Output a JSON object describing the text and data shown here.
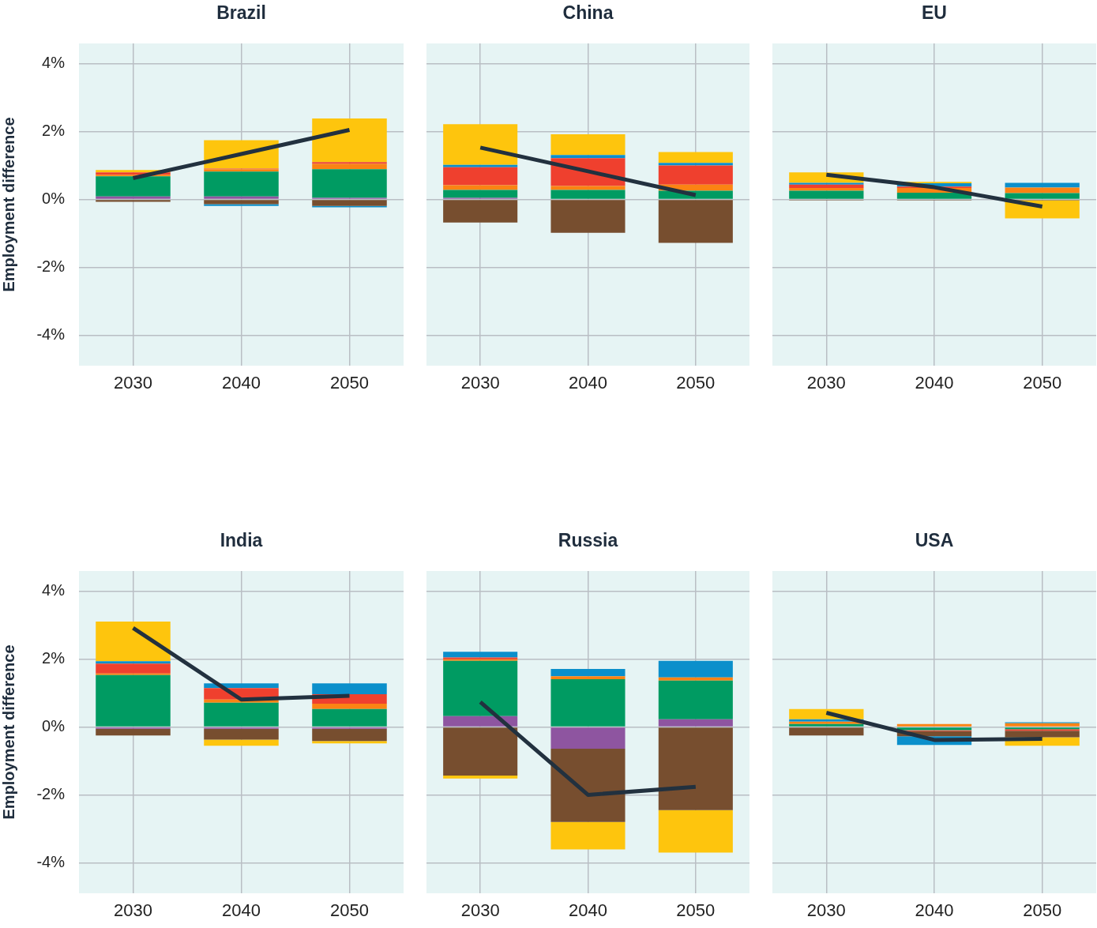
{
  "chart_data": [
    {
      "type": "bar",
      "stacked": true,
      "title": "Brazil",
      "ylabel": "Employment difference",
      "categories": [
        "2030",
        "2040",
        "2050"
      ],
      "ylim": [
        -4.9,
        4.6
      ],
      "yticks": [
        {
          "value": 4,
          "label": "4%"
        },
        {
          "value": 2,
          "label": "2%"
        },
        {
          "value": 0,
          "label": "0%"
        },
        {
          "value": -2,
          "label": "-2%"
        },
        {
          "value": -4,
          "label": "-4%"
        }
      ],
      "grid": true,
      "legend": false,
      "series": [
        {
          "color": "#8e55a0",
          "values": [
            0.09,
            0.09,
            0.05
          ]
        },
        {
          "color": "#009b62",
          "values": [
            0.59,
            0.73,
            0.84
          ]
        },
        {
          "color": "#fb8313",
          "values": [
            0.05,
            0.07,
            0.16
          ]
        },
        {
          "color": "#ef402e",
          "values": [
            0.07,
            0.02,
            0.05
          ]
        },
        {
          "color": "#774e2f",
          "values": [
            -0.07,
            -0.14,
            -0.19
          ]
        },
        {
          "color": "#0b8fcb",
          "values": [
            null,
            -0.05,
            -0.04
          ]
        },
        {
          "color": "#fec50d",
          "values": [
            0.07,
            0.84,
            1.29
          ]
        },
        {
          "type": "line",
          "color": "#22313f",
          "values": [
            0.63,
            1.34,
            2.05
          ]
        }
      ]
    },
    {
      "type": "bar",
      "stacked": true,
      "title": "China",
      "categories": [
        "2030",
        "2040",
        "2050"
      ],
      "ylim": [
        -4.9,
        4.6
      ],
      "yticks": [
        {
          "value": 4,
          "label": null
        },
        {
          "value": 2,
          "label": null
        },
        {
          "value": 0,
          "label": null
        },
        {
          "value": -2,
          "label": null
        },
        {
          "value": -4,
          "label": null
        }
      ],
      "grid": true,
      "legend": false,
      "tick_labels": "x",
      "series": [
        {
          "color": "#8e55a0",
          "values": [
            0.05,
            null,
            null
          ]
        },
        {
          "color": "#009b62",
          "values": [
            0.23,
            0.28,
            0.26
          ]
        },
        {
          "color": "#fb8313",
          "values": [
            0.14,
            0.12,
            0.18
          ]
        },
        {
          "color": "#ef402e",
          "values": [
            0.53,
            0.82,
            0.56
          ]
        },
        {
          "color": "#774e2f",
          "values": [
            -0.68,
            -0.98,
            -1.28
          ]
        },
        {
          "color": "#0b8fcb",
          "values": [
            0.07,
            0.09,
            0.08
          ]
        },
        {
          "color": "#fec50d",
          "values": [
            1.2,
            0.61,
            0.32
          ]
        },
        {
          "type": "line",
          "color": "#22313f",
          "values": [
            1.53,
            0.83,
            0.13
          ]
        }
      ]
    },
    {
      "type": "bar",
      "stacked": true,
      "title": "EU",
      "categories": [
        "2030",
        "2040",
        "2050"
      ],
      "ylim": [
        -4.9,
        4.6
      ],
      "yticks": [
        {
          "value": 4,
          "label": null
        },
        {
          "value": 2,
          "label": null
        },
        {
          "value": 0,
          "label": null
        },
        {
          "value": -2,
          "label": null
        },
        {
          "value": -4,
          "label": null
        }
      ],
      "grid": true,
      "legend": false,
      "tick_labels": "x",
      "series": [
        {
          "color": "#8e55a0",
          "values": [
            null,
            null,
            null
          ]
        },
        {
          "color": "#009b62",
          "values": [
            0.26,
            0.2,
            0.19
          ]
        },
        {
          "color": "#fb8313",
          "values": [
            0.08,
            0.14,
            0.16
          ]
        },
        {
          "color": "#ef402e",
          "values": [
            0.1,
            0.04,
            null
          ]
        },
        {
          "color": "#774e2f",
          "values": [
            -0.03,
            -0.03,
            -0.03
          ]
        },
        {
          "color": "#0b8fcb",
          "values": [
            0.05,
            0.1,
            0.14
          ]
        },
        {
          "color": "#fec50d",
          "values": [
            0.31,
            0.04,
            -0.53
          ]
        },
        {
          "type": "line",
          "color": "#22313f",
          "values": [
            0.73,
            0.36,
            -0.21
          ]
        }
      ]
    },
    {
      "type": "bar",
      "stacked": true,
      "title": "India",
      "ylabel": "Employment difference",
      "categories": [
        "2030",
        "2040",
        "2050"
      ],
      "ylim": [
        -4.9,
        4.6
      ],
      "yticks": [
        {
          "value": 4,
          "label": "4%"
        },
        {
          "value": 2,
          "label": "2%"
        },
        {
          "value": 0,
          "label": "0%"
        },
        {
          "value": -2,
          "label": "-2%"
        },
        {
          "value": -4,
          "label": "-4%"
        }
      ],
      "grid": true,
      "legend": false,
      "series": [
        {
          "color": "#8e55a0",
          "values": [
            -0.05,
            -0.05,
            -0.05
          ]
        },
        {
          "color": "#009b62",
          "values": [
            1.53,
            0.72,
            0.53
          ]
        },
        {
          "color": "#fb8313",
          "values": [
            0.05,
            0.09,
            0.16
          ]
        },
        {
          "color": "#ef402e",
          "values": [
            0.29,
            0.34,
            0.28
          ]
        },
        {
          "color": "#774e2f",
          "values": [
            -0.2,
            -0.32,
            -0.36
          ]
        },
        {
          "color": "#0b8fcb",
          "values": [
            0.07,
            0.14,
            0.32
          ]
        },
        {
          "color": "#fec50d",
          "values": [
            1.17,
            -0.18,
            -0.07
          ]
        },
        {
          "type": "line",
          "color": "#22313f",
          "values": [
            2.92,
            0.81,
            0.92
          ]
        }
      ]
    },
    {
      "type": "bar",
      "stacked": true,
      "title": "Russia",
      "categories": [
        "2030",
        "2040",
        "2050"
      ],
      "ylim": [
        -4.9,
        4.6
      ],
      "yticks": [
        {
          "value": 4,
          "label": null
        },
        {
          "value": 2,
          "label": null
        },
        {
          "value": 0,
          "label": null
        },
        {
          "value": -2,
          "label": null
        },
        {
          "value": -4,
          "label": null
        }
      ],
      "grid": true,
      "legend": false,
      "tick_labels": "x",
      "series": [
        {
          "color": "#8e55a0",
          "values": [
            0.32,
            -0.64,
            0.23
          ]
        },
        {
          "color": "#009b62",
          "values": [
            1.63,
            1.41,
            1.14
          ]
        },
        {
          "color": "#fb8313",
          "values": [
            0.05,
            0.09,
            0.09
          ]
        },
        {
          "color": "#ef402e",
          "values": [
            0.05,
            null,
            null
          ]
        },
        {
          "color": "#774e2f",
          "values": [
            -1.43,
            -2.16,
            -2.45
          ]
        },
        {
          "color": "#0b8fcb",
          "values": [
            0.17,
            0.21,
            0.49
          ]
        },
        {
          "color": "#fec50d",
          "values": [
            -0.09,
            -0.81,
            -1.25
          ]
        },
        {
          "type": "line",
          "color": "#22313f",
          "values": [
            0.74,
            -2.0,
            -1.76
          ]
        }
      ]
    },
    {
      "type": "bar",
      "stacked": true,
      "title": "USA",
      "categories": [
        "2030",
        "2040",
        "2050"
      ],
      "ylim": [
        -4.9,
        4.6
      ],
      "yticks": [
        {
          "value": 4,
          "label": null
        },
        {
          "value": 2,
          "label": null
        },
        {
          "value": 0,
          "label": null
        },
        {
          "value": -2,
          "label": null
        },
        {
          "value": -4,
          "label": null
        }
      ],
      "grid": true,
      "legend": false,
      "tick_labels": "x",
      "series": [
        {
          "color": "#8e55a0",
          "values": [
            null,
            null,
            null
          ]
        },
        {
          "color": "#009b62",
          "values": [
            0.09,
            -0.09,
            -0.06
          ]
        },
        {
          "color": "#fb8313",
          "values": [
            0.07,
            0.09,
            0.11
          ]
        },
        {
          "color": "#ef402e",
          "values": [
            null,
            -0.03,
            -0.05
          ]
        },
        {
          "color": "#774e2f",
          "values": [
            -0.25,
            -0.15,
            -0.19
          ]
        },
        {
          "color": "#0b8fcb",
          "values": [
            0.07,
            -0.26,
            0.03
          ]
        },
        {
          "color": "#fec50d",
          "values": [
            0.3,
            null,
            -0.25
          ]
        },
        {
          "type": "line",
          "color": "#22313f",
          "values": [
            0.42,
            -0.38,
            -0.35
          ]
        }
      ]
    }
  ]
}
